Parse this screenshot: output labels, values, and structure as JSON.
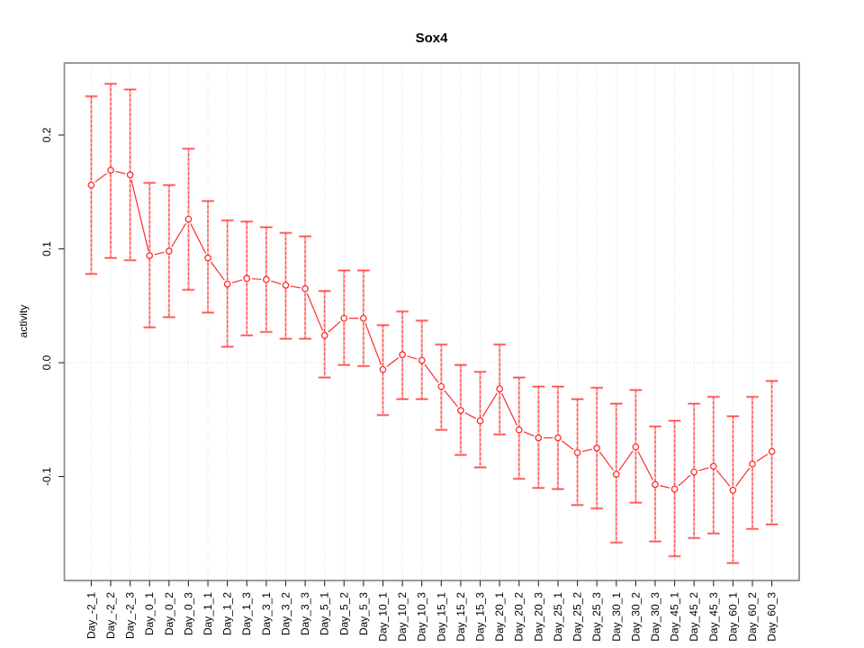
{
  "title": "Sox4",
  "ylabel": "activity",
  "colors": {
    "line": "#ff2b2b",
    "marker": "#ff2b2b",
    "error_bar_fill": "#ffabab",
    "error_bar_dash": "#ff2b2b",
    "grid": "#d9d9d9",
    "box": "#898989",
    "tick": "#2b2b2b",
    "background": "#ffffff"
  },
  "chart_data": {
    "type": "line",
    "title": "Sox4",
    "xlabel": "",
    "ylabel": "activity",
    "legend_position": "none",
    "grid": "vertical dotted gridlines at each category; dotted horizontal line at y=0",
    "marker": "open-circle",
    "error_bars": true,
    "ylim": [
      -0.193,
      0.263
    ],
    "yticks": [
      -0.1,
      0.0,
      0.1,
      0.2
    ],
    "ytick_labels": [
      "-0.1",
      "0.0",
      "0.1",
      "0.2"
    ],
    "categories": [
      "Day_-2_1",
      "Day_-2_2",
      "Day_-2_3",
      "Day_0_1",
      "Day_0_2",
      "Day_0_3",
      "Day_1_1",
      "Day_1_2",
      "Day_1_3",
      "Day_3_1",
      "Day_3_2",
      "Day_3_3",
      "Day_5_1",
      "Day_5_2",
      "Day_5_3",
      "Day_10_1",
      "Day_10_2",
      "Day_10_3",
      "Day_15_1",
      "Day_15_2",
      "Day_15_3",
      "Day_20_1",
      "Day_20_2",
      "Day_20_3",
      "Day_25_1",
      "Day_25_2",
      "Day_25_3",
      "Day_30_1",
      "Day_30_2",
      "Day_30_3",
      "Day_45_1",
      "Day_45_2",
      "Day_45_3",
      "Day_60_1",
      "Day_60_2",
      "Day_60_3"
    ],
    "series": [
      {
        "name": "activity",
        "values": [
          0.156,
          0.169,
          0.165,
          0.094,
          0.098,
          0.126,
          0.092,
          0.069,
          0.074,
          0.073,
          0.068,
          0.065,
          0.024,
          0.039,
          0.039,
          -0.006,
          0.007,
          0.002,
          -0.021,
          -0.042,
          -0.051,
          -0.023,
          -0.059,
          -0.066,
          -0.066,
          -0.079,
          -0.075,
          -0.098,
          -0.074,
          -0.107,
          -0.111,
          -0.096,
          -0.091,
          -0.112,
          -0.089,
          -0.078
        ],
        "error_upper": [
          0.234,
          0.245,
          0.24,
          0.158,
          0.156,
          0.188,
          0.142,
          0.125,
          0.124,
          0.119,
          0.114,
          0.111,
          0.063,
          0.081,
          0.081,
          0.033,
          0.045,
          0.037,
          0.016,
          -0.002,
          -0.008,
          0.016,
          -0.013,
          -0.021,
          -0.021,
          -0.032,
          -0.022,
          -0.036,
          -0.024,
          -0.056,
          -0.051,
          -0.036,
          -0.03,
          -0.047,
          -0.03,
          -0.016
        ],
        "error_lower": [
          0.078,
          0.092,
          0.09,
          0.031,
          0.04,
          0.064,
          0.044,
          0.014,
          0.024,
          0.027,
          0.021,
          0.021,
          -0.013,
          -0.002,
          -0.003,
          -0.046,
          -0.032,
          -0.032,
          -0.059,
          -0.081,
          -0.092,
          -0.063,
          -0.102,
          -0.11,
          -0.111,
          -0.125,
          -0.128,
          -0.158,
          -0.123,
          -0.157,
          -0.17,
          -0.154,
          -0.15,
          -0.176,
          -0.146,
          -0.142
        ]
      }
    ]
  }
}
